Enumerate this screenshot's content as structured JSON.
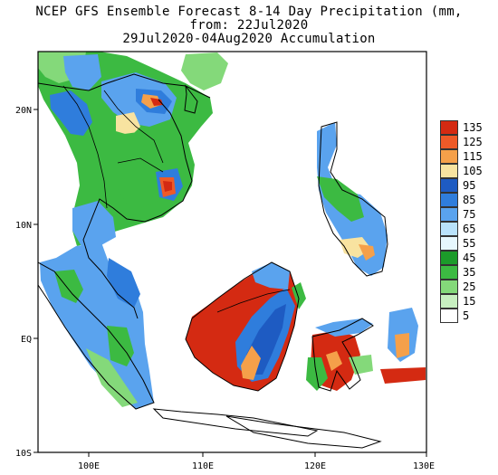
{
  "title": {
    "line1": "NCEP GFS Ensemble Forecast 8-14 Day Precipitation (mm,",
    "line2": "from: 22Jul2020",
    "line3": "29Jul2020-04Aug2020 Accumulation"
  },
  "axes": {
    "lat_labels": [
      "20N",
      "10N",
      "EQ",
      "10S"
    ],
    "lon_labels": [
      "100E",
      "110E",
      "120E",
      "130E"
    ],
    "lat_range": [
      -10,
      25
    ],
    "lon_range": [
      95,
      130
    ]
  },
  "legend": {
    "entries": [
      {
        "label": "135",
        "color": "#d42a12"
      },
      {
        "label": "125",
        "color": "#ee5a28"
      },
      {
        "label": "115",
        "color": "#f5a04a"
      },
      {
        "label": "105",
        "color": "#f8e3a0"
      },
      {
        "label": "95",
        "color": "#1e5bc2"
      },
      {
        "label": "85",
        "color": "#2f7ddc"
      },
      {
        "label": "75",
        "color": "#5aa3ee"
      },
      {
        "label": "65",
        "color": "#b9e2fb"
      },
      {
        "label": "55",
        "color": "#e6f7fd"
      },
      {
        "label": "45",
        "color": "#1c9b2a"
      },
      {
        "label": "35",
        "color": "#3cba42"
      },
      {
        "label": "25",
        "color": "#84d97a"
      },
      {
        "label": "15",
        "color": "#c7efc0"
      },
      {
        "label": "5",
        "color": "#ffffff"
      }
    ]
  }
}
